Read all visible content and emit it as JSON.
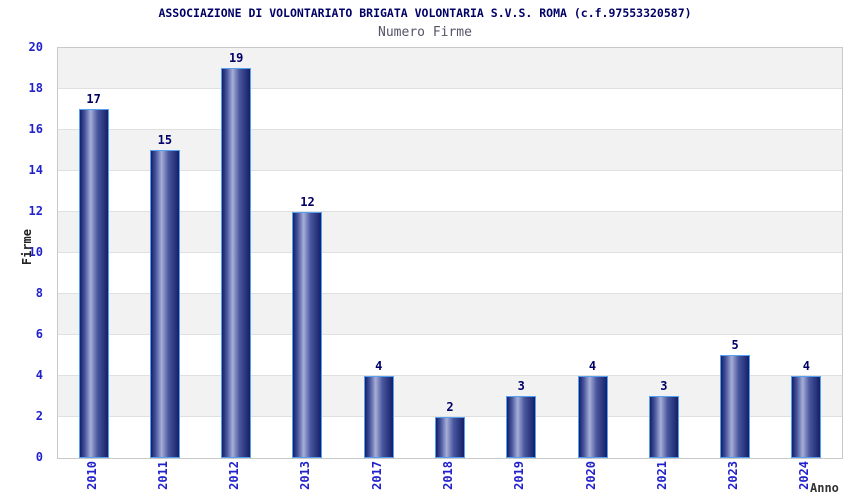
{
  "header": {
    "title": "ASSOCIAZIONE DI VOLONTARIATO BRIGATA VOLONTARIA S.V.S. ROMA (c.f.97553320587)",
    "subtitle": "Numero Firme"
  },
  "chart_data": {
    "type": "bar",
    "title": "ASSOCIAZIONE DI VOLONTARIATO BRIGATA VOLONTARIA S.V.S. ROMA (c.f.97553320587)",
    "subtitle": "Numero Firme",
    "categories": [
      "2010",
      "2011",
      "2012",
      "2013",
      "2017",
      "2018",
      "2019",
      "2020",
      "2021",
      "2023",
      "2024"
    ],
    "values": [
      17,
      15,
      19,
      12,
      4,
      2,
      3,
      4,
      3,
      5,
      4
    ],
    "xlabel": "Anno",
    "ylabel": "Firme",
    "ylim": [
      0,
      20
    ],
    "ytick_step": 2,
    "yticks": [
      0,
      2,
      4,
      6,
      8,
      10,
      12,
      14,
      16,
      18,
      20
    ],
    "grid": "horizontal alternating bands",
    "legend": "none",
    "bar_value_labels_shown": true
  },
  "colors": {
    "title_text": "#000066",
    "subtitle_text": "#555566",
    "tick_text": "#2222cc",
    "value_label_text": "#000066",
    "ylabel_text": "#222222",
    "xlabel_text": "#333333",
    "band_gray": "#f2f2f3",
    "band_white": "#ffffff",
    "grid_line": "#e0e0e0",
    "plot_border": "#c9c9c9",
    "bar_border": "#55a0f0",
    "bar_dark": "#141f66",
    "bar_mid": "#4a58a0",
    "bar_light": "#a7aed6"
  }
}
